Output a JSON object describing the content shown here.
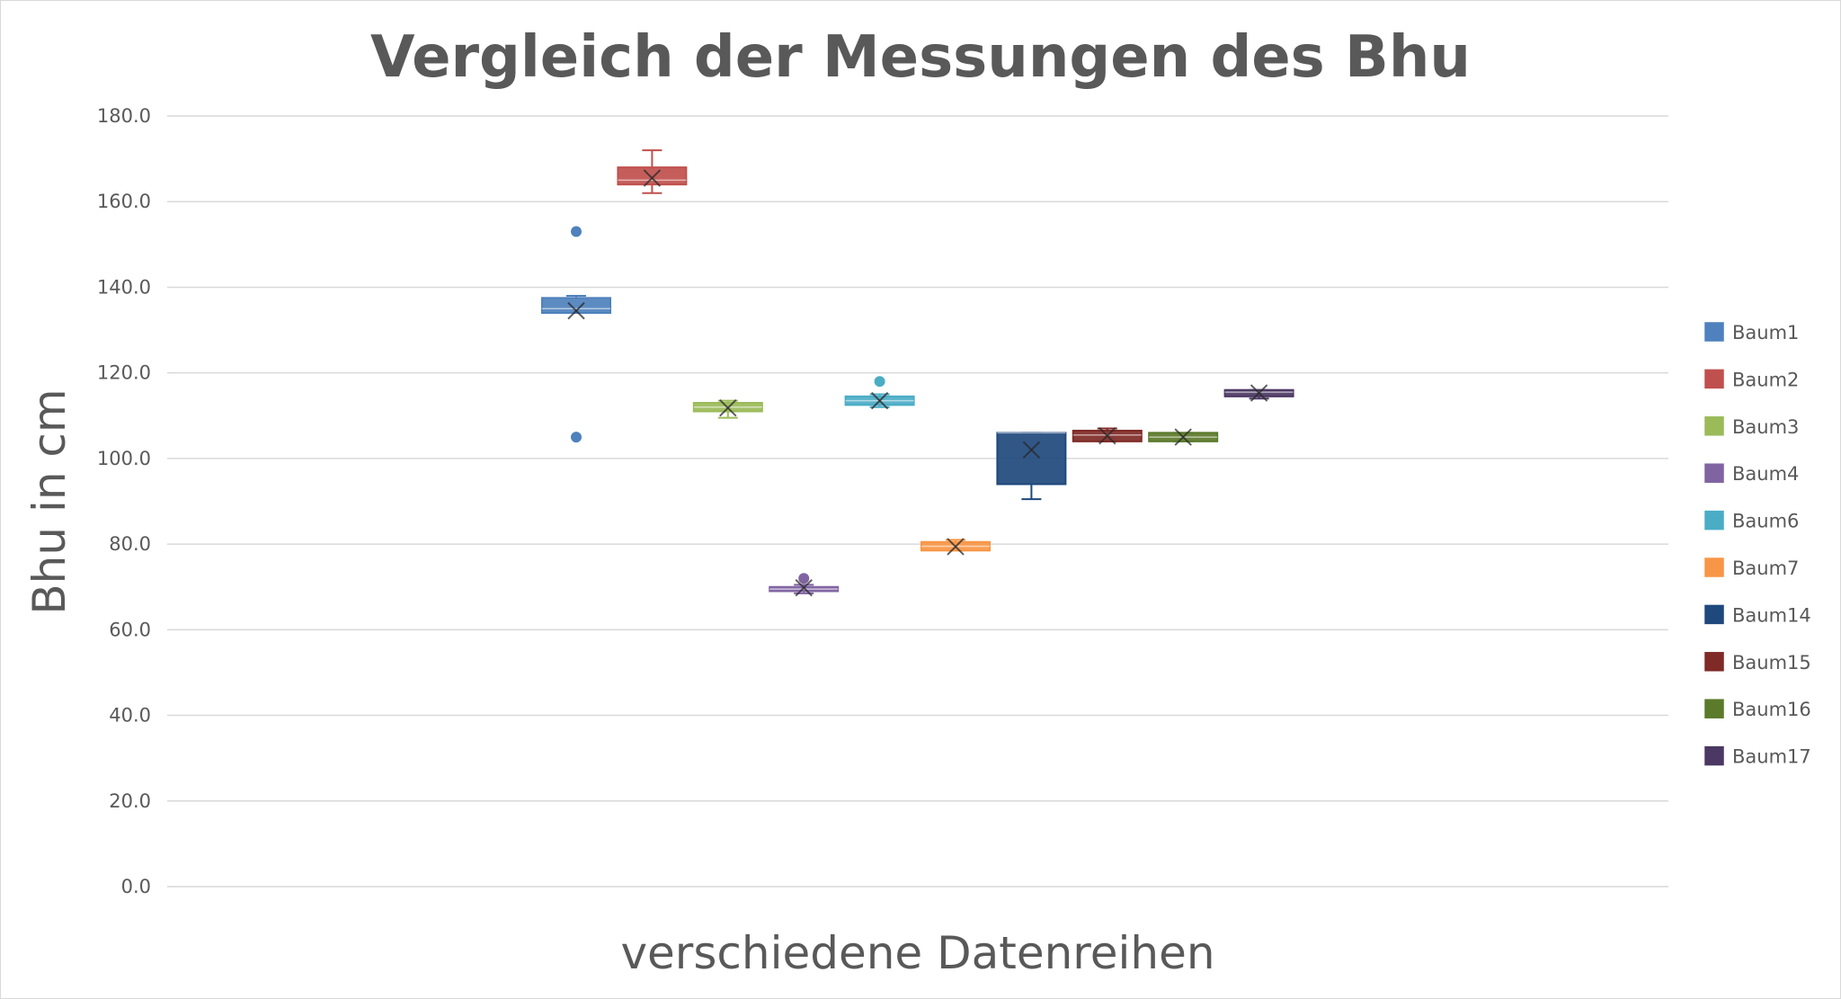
{
  "chart_data": {
    "type": "box",
    "title": "Vergleich der Messungen des Bhu",
    "xlabel": "verschiedene Datenreihen",
    "ylabel": "Bhu in cm",
    "ylim": [
      0,
      180
    ],
    "ytick_step": 20,
    "ytick_labels": [
      "0.0",
      "20.0",
      "40.0",
      "60.0",
      "80.0",
      "100.0",
      "120.0",
      "140.0",
      "160.0",
      "180.0"
    ],
    "grid": true,
    "legend_position": "right",
    "series": [
      {
        "name": "Baum1",
        "color": "#4e81bd",
        "min": 134,
        "q1": 134,
        "median": 135,
        "q3": 137.5,
        "max": 138,
        "mean": 134.5,
        "outliers": [
          153,
          105
        ]
      },
      {
        "name": "Baum2",
        "color": "#c0504d",
        "min": 162,
        "q1": 164,
        "median": 165,
        "q3": 168,
        "max": 172,
        "mean": 165.5,
        "outliers": []
      },
      {
        "name": "Baum3",
        "color": "#9bbb59",
        "min": 109.5,
        "q1": 111,
        "median": 112,
        "q3": 113,
        "max": 113.5,
        "mean": 111.8,
        "outliers": []
      },
      {
        "name": "Baum4",
        "color": "#8064a2",
        "min": 68.5,
        "q1": 69,
        "median": 69.5,
        "q3": 70,
        "max": 70.5,
        "mean": 69.8,
        "outliers": [
          72
        ]
      },
      {
        "name": "Baum6",
        "color": "#4bacc6",
        "min": 112,
        "q1": 112.5,
        "median": 113.5,
        "q3": 114.5,
        "max": 115,
        "mean": 113.5,
        "outliers": [
          118
        ]
      },
      {
        "name": "Baum7",
        "color": "#f79646",
        "min": 78.5,
        "q1": 78.5,
        "median": 79.5,
        "q3": 80.5,
        "max": 81,
        "mean": 79.4,
        "outliers": []
      },
      {
        "name": "Baum14",
        "color": "#1f497d",
        "min": 90.5,
        "q1": 94,
        "median": 106,
        "q3": 106,
        "max": 106,
        "mean": 102,
        "outliers": []
      },
      {
        "name": "Baum15",
        "color": "#7f2a26",
        "min": 104,
        "q1": 104,
        "median": 105.5,
        "q3": 106.5,
        "max": 107,
        "mean": 105.3,
        "outliers": []
      },
      {
        "name": "Baum16",
        "color": "#5b7a2a",
        "min": 104,
        "q1": 104,
        "median": 105,
        "q3": 106,
        "max": 106,
        "mean": 105,
        "outliers": []
      },
      {
        "name": "Baum17",
        "color": "#4b3863",
        "min": 114,
        "q1": 114.5,
        "median": 115.5,
        "q3": 116,
        "max": 116,
        "mean": 115.3,
        "outliers": []
      }
    ]
  }
}
